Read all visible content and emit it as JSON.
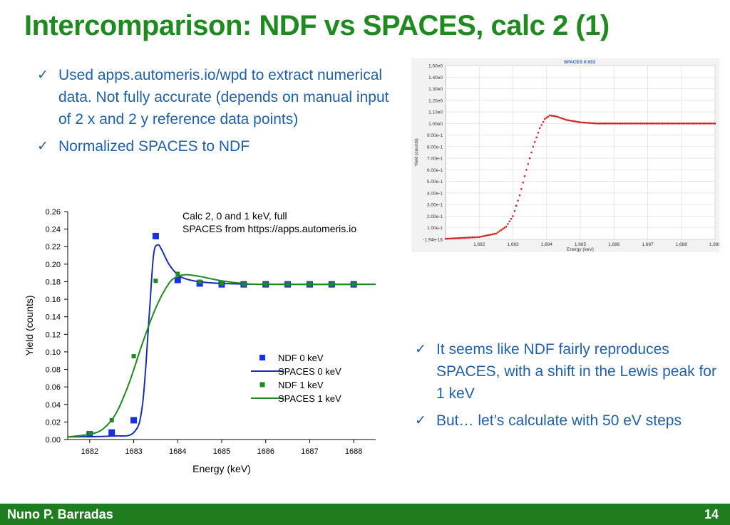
{
  "title": "Intercomparison: NDF vs SPACES, calc 2 (1)",
  "bullets_top": [
    "Used apps.automeris.io/wpd to extract numerical data. Not fully accurate (depends on manual input of 2 x and 2 y reference data points)",
    "Normalized SPACES to NDF"
  ],
  "bullets_bottom": [
    "It seems like NDF fairly reproduces SPACES, with a shift in the Lewis peak for 1 keV",
    "But… let’s calculate with 50 eV steps"
  ],
  "footer": {
    "author": "Nuno P. Barradas",
    "page": "14"
  },
  "colors": {
    "title": "#1f8a1f",
    "text": "#1f5fa8",
    "footer": "#1f7d1f",
    "ndf0": "#1a2fe0",
    "spaces0": "#1a2fb0",
    "ndf1": "#1f8a1f",
    "spaces1": "#1f8a1f",
    "spaces_screenshot": "#d42020"
  },
  "chart_data": [
    {
      "type": "scatter",
      "title": "",
      "annotation": [
        "Calc 2, 0 and 1 keV, full",
        "SPACES from https://apps.automeris.io"
      ],
      "xlabel": "Energy (keV)",
      "ylabel": "Yield (counts)",
      "xlim": [
        1681.5,
        1688.5
      ],
      "ylim": [
        0,
        0.26
      ],
      "xticks": [
        1682,
        1683,
        1684,
        1685,
        1686,
        1687,
        1688
      ],
      "yticks": [
        "0.00",
        "0.02",
        "0.04",
        "0.06",
        "0.08",
        "0.10",
        "0.12",
        "0.14",
        "0.16",
        "0.18",
        "0.20",
        "0.22",
        "0.24",
        "0.26"
      ],
      "legend_position": "lower-right",
      "series": [
        {
          "name": "NDF 0 keV",
          "kind": "markers",
          "color": "#1a2fe0",
          "x": [
            1682,
            1682.5,
            1683,
            1683.5,
            1684,
            1684.5,
            1685,
            1685.5,
            1686,
            1686.5,
            1687,
            1687.5,
            1688
          ],
          "y": [
            0.006,
            0.008,
            0.022,
            0.232,
            0.182,
            0.178,
            0.177,
            0.177,
            0.177,
            0.177,
            0.177,
            0.177,
            0.177
          ]
        },
        {
          "name": "SPACES 0 keV",
          "kind": "line",
          "color": "#1a2fb0",
          "x": [
            1681.5,
            1682.5,
            1683.0,
            1683.2,
            1683.35,
            1683.45,
            1683.55,
            1683.65,
            1683.8,
            1684.0,
            1684.2,
            1684.5,
            1685.0,
            1686.0,
            1688.5
          ],
          "y": [
            0.003,
            0.004,
            0.008,
            0.04,
            0.14,
            0.21,
            0.222,
            0.215,
            0.2,
            0.188,
            0.183,
            0.18,
            0.178,
            0.177,
            0.177
          ]
        },
        {
          "name": "NDF 1 keV",
          "kind": "markers",
          "color": "#1f8a1f",
          "x": [
            1682,
            1682.5,
            1683,
            1683.5,
            1684,
            1684.5,
            1685,
            1685.5,
            1686,
            1686.5,
            1687,
            1687.5,
            1688
          ],
          "y": [
            0.007,
            0.022,
            0.095,
            0.181,
            0.189,
            0.18,
            0.178,
            0.177,
            0.177,
            0.177,
            0.177,
            0.177,
            0.177
          ]
        },
        {
          "name": "SPACES 1 keV",
          "kind": "line",
          "color": "#1f8a1f",
          "x": [
            1681.5,
            1682.0,
            1682.3,
            1682.6,
            1682.9,
            1683.2,
            1683.5,
            1683.8,
            1684.0,
            1684.2,
            1684.5,
            1685.0,
            1685.5,
            1686.0,
            1688.5
          ],
          "y": [
            0.003,
            0.006,
            0.012,
            0.03,
            0.065,
            0.11,
            0.15,
            0.178,
            0.186,
            0.188,
            0.186,
            0.181,
            0.178,
            0.177,
            0.177
          ]
        }
      ]
    },
    {
      "type": "scatter",
      "title": "SPACES 0.933",
      "xlabel": "Energy (keV)",
      "ylabel": "Yield (counts)",
      "xlim": [
        1681.0,
        1689.0
      ],
      "ylim": [
        -1.94e-16,
        1.5
      ],
      "xticks": [
        "1,682",
        "1,683",
        "1,684",
        "1,685",
        "1,686",
        "1,687",
        "1,688",
        "1,689"
      ],
      "yticks": [
        "-1.94e-16",
        "1.00e-1",
        "2.00e-1",
        "3.00e-1",
        "4.00e-1",
        "5.00e-1",
        "6.00e-1",
        "7.00e-1",
        "8.00e-1",
        "9.00e-1",
        "1.00e0",
        "1.10e0",
        "1.20e0",
        "1.30e0",
        "1.40e0",
        "1.50e0"
      ],
      "series": [
        {
          "name": "",
          "kind": "dotted-line",
          "color": "#d42020",
          "x": [
            1681.0,
            1682.0,
            1682.5,
            1682.8,
            1683.0,
            1683.2,
            1683.4,
            1683.6,
            1683.8,
            1683.95,
            1684.1,
            1684.3,
            1684.6,
            1685.0,
            1685.5,
            1686.0,
            1689.0
          ],
          "y": [
            0.005,
            0.02,
            0.05,
            0.11,
            0.2,
            0.38,
            0.6,
            0.8,
            0.96,
            1.04,
            1.07,
            1.06,
            1.03,
            1.01,
            1.0,
            1.0,
            1.0
          ]
        }
      ]
    }
  ]
}
